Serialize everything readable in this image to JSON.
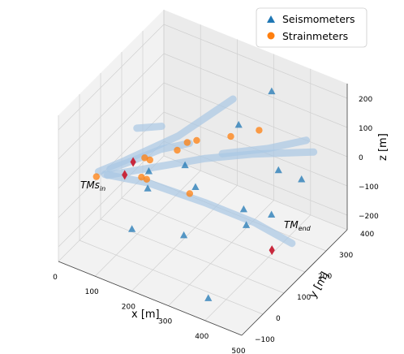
{
  "chart_data": {
    "type": "scatter3d",
    "xlabel": "x [m]",
    "ylabel": "y [m]",
    "zlabel": "z [m]",
    "xlim": [
      0,
      500
    ],
    "ylim": [
      -100,
      400
    ],
    "zlim": [
      -250,
      250
    ],
    "xticks": [
      "0",
      "100",
      "200",
      "300",
      "400",
      "500"
    ],
    "yticks": [
      "−100",
      "0",
      "100",
      "200",
      "300",
      "400"
    ],
    "zticks": [
      "−200",
      "−100",
      "0",
      "100",
      "200"
    ],
    "grid": true,
    "legend": {
      "placement": "top-right",
      "entries": [
        {
          "name": "Seismometers",
          "marker": "triangle",
          "color": "#1f77b4"
        },
        {
          "name": "Strainmeters",
          "marker": "circle",
          "color": "#ff7f0e"
        }
      ]
    },
    "annotations": [
      {
        "base": "TMs",
        "sub": "in"
      },
      {
        "base": "TM",
        "sub": "end"
      }
    ],
    "colors": {
      "seismometers": "#1f77b4",
      "strainmeters": "#ff7f0e",
      "tunnel": "#a9c7e4",
      "tm_marker": "#c8283c"
    }
  }
}
